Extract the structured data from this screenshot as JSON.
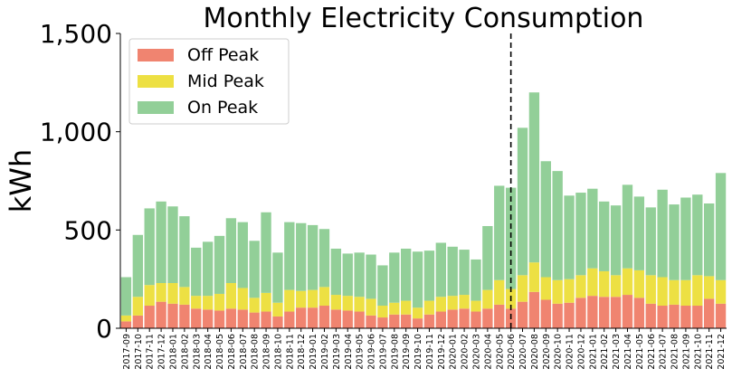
{
  "chart_data": {
    "type": "bar",
    "stacked": true,
    "title": "Monthly Electricity Consumption",
    "ylabel": "kWh",
    "xlabel": "",
    "ylim": [
      0,
      1500
    ],
    "yticks": [
      0,
      500,
      1000,
      1500
    ],
    "ytick_labels": [
      "0",
      "500",
      "1,000",
      "1,500"
    ],
    "grid": false,
    "legend_position": "top-left",
    "vline_category": "2020-06",
    "categories": [
      "2017-09",
      "2017-10",
      "2017-11",
      "2017-12",
      "2018-01",
      "2018-02",
      "2018-03",
      "2018-04",
      "2018-05",
      "2018-06",
      "2018-07",
      "2018-08",
      "2018-09",
      "2018-10",
      "2018-11",
      "2018-12",
      "2019-01",
      "2019-02",
      "2019-03",
      "2019-04",
      "2019-05",
      "2019-06",
      "2019-07",
      "2019-08",
      "2019-09",
      "2019-10",
      "2019-11",
      "2019-12",
      "2020-01",
      "2020-02",
      "2020-03",
      "2020-04",
      "2020-05",
      "2020-06",
      "2020-07",
      "2020-08",
      "2020-09",
      "2020-10",
      "2020-11",
      "2020-12",
      "2021-01",
      "2021-02",
      "2021-03",
      "2021-04",
      "2021-05",
      "2021-06",
      "2021-07",
      "2021-08",
      "2021-09",
      "2021-10",
      "2021-11",
      "2021-12"
    ],
    "series": [
      {
        "name": "Off Peak",
        "color": "#f08470",
        "values": [
          35,
          65,
          115,
          135,
          125,
          120,
          100,
          95,
          90,
          100,
          95,
          80,
          85,
          60,
          85,
          105,
          105,
          115,
          95,
          90,
          85,
          65,
          55,
          70,
          70,
          50,
          70,
          85,
          95,
          100,
          85,
          100,
          120,
          100,
          135,
          185,
          145,
          125,
          130,
          155,
          165,
          160,
          160,
          170,
          155,
          125,
          115,
          120,
          115,
          115,
          150,
          125
        ]
      },
      {
        "name": "Mid Peak",
        "color": "#ede043",
        "values": [
          30,
          95,
          105,
          95,
          105,
          90,
          65,
          70,
          85,
          130,
          110,
          75,
          95,
          70,
          110,
          85,
          90,
          95,
          75,
          75,
          75,
          85,
          60,
          60,
          70,
          55,
          70,
          75,
          70,
          70,
          55,
          95,
          125,
          100,
          135,
          150,
          115,
          120,
          120,
          115,
          140,
          130,
          110,
          135,
          140,
          145,
          145,
          125,
          130,
          155,
          115,
          120
        ]
      },
      {
        "name": "On Peak",
        "color": "#92cf98",
        "values": [
          195,
          315,
          390,
          415,
          390,
          360,
          245,
          275,
          295,
          330,
          335,
          290,
          410,
          255,
          345,
          345,
          330,
          295,
          235,
          215,
          225,
          225,
          205,
          255,
          265,
          285,
          255,
          275,
          250,
          230,
          210,
          325,
          480,
          515,
          750,
          865,
          590,
          555,
          425,
          420,
          405,
          355,
          355,
          425,
          375,
          345,
          445,
          385,
          420,
          410,
          370,
          545
        ]
      }
    ]
  }
}
